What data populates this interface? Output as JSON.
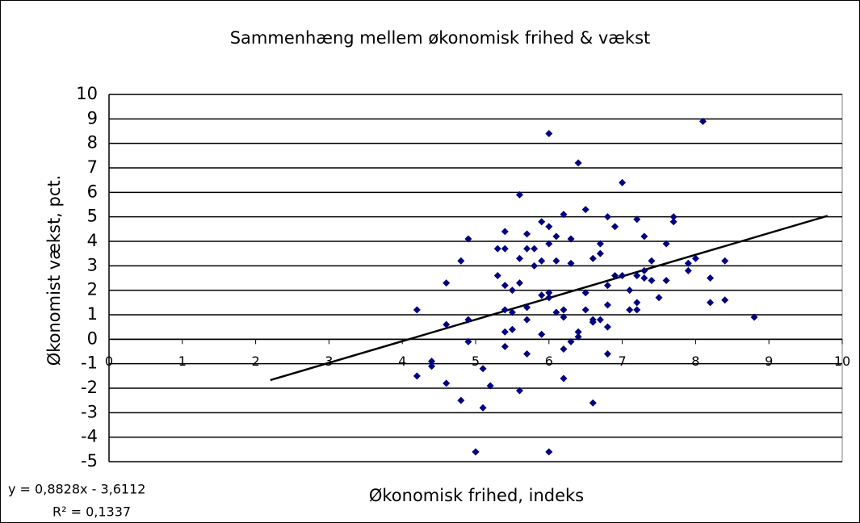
{
  "chart_data": {
    "type": "scatter",
    "title": "Sammenhæng mellem økonomisk frihed & vækst",
    "x_label": "Økonomisk frihed, indeks",
    "y_label": "Økonomist vækst, pct.",
    "color": "#000080",
    "grid": true,
    "xlim": [
      0,
      10
    ],
    "ylim": [
      -5,
      10
    ],
    "xticks": [
      0,
      1,
      2,
      3,
      4,
      5,
      6,
      7,
      8,
      9,
      10
    ],
    "yticks": [
      -5,
      -4,
      -3,
      -2,
      -1,
      0,
      1,
      2,
      3,
      4,
      5,
      6,
      7,
      8,
      9,
      10
    ],
    "x": [
      4.2,
      4.2,
      4.4,
      4.4,
      4.6,
      4.6,
      4.6,
      4.8,
      4.8,
      4.9,
      4.9,
      4.9,
      5.0,
      5.0,
      5.1,
      5.1,
      5.2,
      5.3,
      5.3,
      5.4,
      5.4,
      5.4,
      5.4,
      5.4,
      5.4,
      5.5,
      5.5,
      5.5,
      5.6,
      5.6,
      5.6,
      5.6,
      5.7,
      5.7,
      5.7,
      5.7,
      5.7,
      5.8,
      5.8,
      5.9,
      5.9,
      5.9,
      5.9,
      6.0,
      6.0,
      6.0,
      6.0,
      6.0,
      6.0,
      6.1,
      6.1,
      6.1,
      6.2,
      6.2,
      6.2,
      6.2,
      6.2,
      6.3,
      6.3,
      6.3,
      6.4,
      6.4,
      6.4,
      6.5,
      6.5,
      6.5,
      6.6,
      6.6,
      6.6,
      6.6,
      6.7,
      6.7,
      6.7,
      6.8,
      6.8,
      6.8,
      6.8,
      6.8,
      6.9,
      6.9,
      7.0,
      7.0,
      7.1,
      7.1,
      7.2,
      7.2,
      7.2,
      7.2,
      7.3,
      7.3,
      7.3,
      7.4,
      7.4,
      7.5,
      7.6,
      7.6,
      7.7,
      7.7,
      7.9,
      7.9,
      8.0,
      8.1,
      8.2,
      8.2,
      8.4,
      8.4,
      8.8
    ],
    "values": [
      1.2,
      -1.5,
      -0.9,
      -1.1,
      2.3,
      0.6,
      -1.8,
      3.2,
      -2.5,
      4.1,
      0.8,
      -0.1,
      -4.6,
      -4.6,
      -1.2,
      -2.8,
      -1.9,
      3.7,
      2.6,
      4.4,
      3.7,
      2.2,
      1.2,
      0.3,
      -0.3,
      2.0,
      1.1,
      0.4,
      5.9,
      3.3,
      2.3,
      -2.1,
      4.3,
      3.7,
      1.3,
      0.8,
      -0.6,
      3.7,
      3.0,
      4.8,
      3.2,
      1.8,
      0.2,
      8.4,
      4.6,
      3.9,
      1.9,
      1.7,
      -4.6,
      4.2,
      3.2,
      1.1,
      5.1,
      1.2,
      0.9,
      -0.4,
      -1.6,
      4.1,
      3.1,
      -0.1,
      7.2,
      0.3,
      0.1,
      5.3,
      1.9,
      1.2,
      3.3,
      0.8,
      0.7,
      -2.6,
      3.9,
      3.5,
      0.8,
      5.0,
      2.2,
      1.4,
      0.5,
      -0.6,
      4.6,
      2.6,
      6.4,
      2.6,
      2.0,
      1.2,
      4.9,
      2.6,
      1.5,
      1.2,
      4.2,
      2.8,
      2.5,
      3.2,
      2.4,
      1.7,
      3.9,
      2.4,
      5.0,
      4.8,
      3.1,
      2.8,
      3.3,
      8.9,
      2.5,
      1.5,
      3.2,
      1.6,
      0.9
    ],
    "trendline": {
      "slope": 0.8828,
      "intercept": -3.6112,
      "xlim": [
        2.2,
        9.8
      ],
      "color": "#000000",
      "equation": "y = 0,8828x - 3,6112",
      "r2": "R² = 0,1337"
    }
  }
}
